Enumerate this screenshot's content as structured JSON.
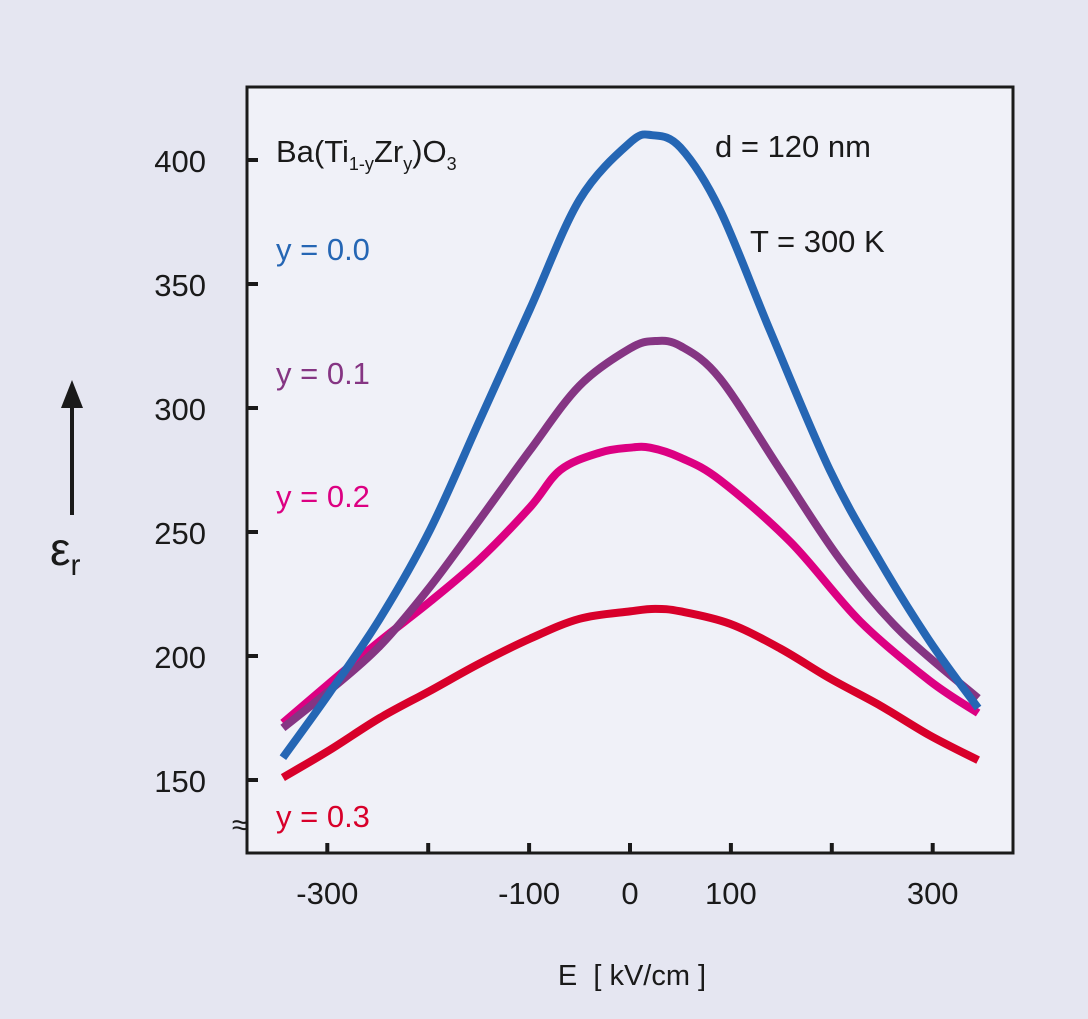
{
  "chart_data": {
    "type": "line",
    "title": "Ba(Ti1-yZry)O3",
    "title_parts": {
      "base1": "Ba(Ti",
      "sub1": "1-y",
      "base2": "Zr",
      "sub2": "y",
      "base3": ")O",
      "sub3": "3"
    },
    "annotations": [
      "d = 120 nm",
      "T = 300 K"
    ],
    "xlabel": "E  [ kV/cm ]",
    "ylabel": "εr",
    "ylabel_parts": {
      "symbol": "ε",
      "sub": "r"
    },
    "axis_break_symbol": "≈",
    "xlim": [
      -380,
      380
    ],
    "ylim": [
      125,
      430
    ],
    "xticks": [
      -300,
      -200,
      -100,
      0,
      100,
      200,
      300
    ],
    "xtick_labels": [
      "-300",
      "",
      "-100",
      "0",
      "100",
      "",
      "300"
    ],
    "yticks": [
      150,
      200,
      250,
      300,
      350,
      400
    ],
    "ytick_labels": [
      "150",
      "200",
      "250",
      "300",
      "350",
      "400"
    ],
    "grid": false,
    "series": [
      {
        "name": "y = 0.0",
        "color": "#2566b4",
        "x": [
          -344,
          -298,
          -248,
          -198,
          -149,
          -99,
          -50,
          0,
          22,
          50,
          89,
          139,
          198,
          248,
          297,
          345
        ],
        "y": [
          159,
          185,
          215,
          251,
          295,
          340,
          384,
          407,
          410,
          405,
          380,
          331,
          275,
          238,
          206,
          179
        ]
      },
      {
        "name": "y = 0.1",
        "color": "#853583",
        "x": [
          -344,
          -298,
          -248,
          -198,
          -149,
          -99,
          -50,
          0,
          25,
          50,
          89,
          149,
          208,
          268,
          345
        ],
        "y": [
          171,
          186,
          204,
          228,
          255,
          283,
          309,
          324,
          327,
          325,
          312,
          275,
          239,
          210,
          183
        ]
      },
      {
        "name": "y = 0.2",
        "color": "#dc0082",
        "x": [
          -344,
          -298,
          -248,
          -198,
          -149,
          -99,
          -69,
          -30,
          0,
          20,
          50,
          89,
          159,
          228,
          297,
          345
        ],
        "y": [
          173,
          189,
          206,
          222,
          239,
          260,
          275,
          282,
          284,
          284,
          280,
          271,
          246,
          214,
          190,
          177
        ]
      },
      {
        "name": "y = 0.3",
        "color": "#d8002a",
        "x": [
          -344,
          -298,
          -248,
          -198,
          -149,
          -99,
          -50,
          0,
          25,
          50,
          99,
          149,
          198,
          248,
          297,
          345
        ],
        "y": [
          151,
          162,
          175,
          186,
          197,
          207,
          215,
          218,
          219,
          218,
          213,
          203,
          191,
          180,
          168,
          158
        ]
      }
    ],
    "legend": {
      "placement": "left inside",
      "entries": [
        "y = 0.0",
        "y = 0.1",
        "y = 0.2",
        "y = 0.3"
      ]
    }
  }
}
